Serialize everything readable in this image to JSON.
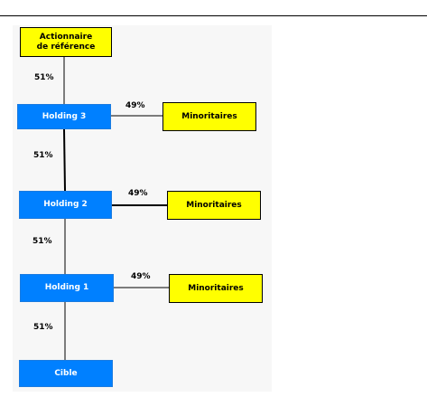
{
  "diagram": {
    "reference_shareholder": {
      "line1": "Actionnaire",
      "line2": "de référence"
    },
    "holding3": {
      "label": "Holding 3"
    },
    "holding2": {
      "label": "Holding 2"
    },
    "holding1": {
      "label": "Holding 1"
    },
    "target": {
      "label": "Cible"
    },
    "minority_top": {
      "label": "Minoritaires"
    },
    "minority_mid": {
      "label": "Minoritaires"
    },
    "minority_bot": {
      "label": "Minoritaires"
    },
    "percentages": {
      "ref_to_h3": "51%",
      "h3_minority": "49%",
      "h3_to_h2": "51%",
      "h2_minority": "49%",
      "h2_to_h1": "51%",
      "h1_minority": "49%",
      "h1_to_target": "51%"
    },
    "colors": {
      "holding_fill": "#0080ff",
      "minority_fill": "#ffff00",
      "background": "#f7f7f7"
    }
  }
}
